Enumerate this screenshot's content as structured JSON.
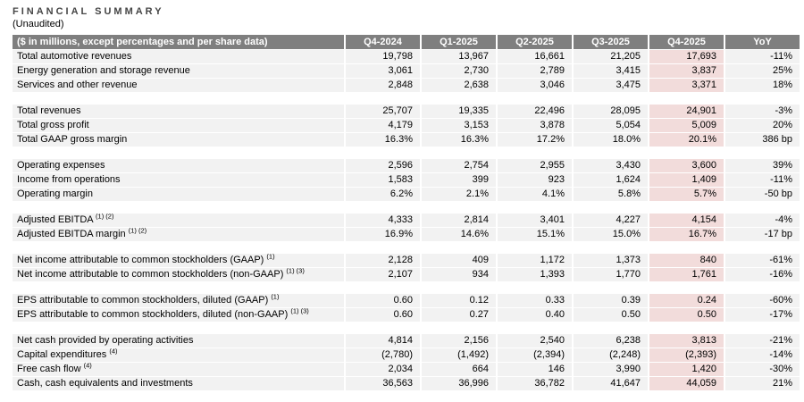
{
  "title": "FINANCIAL SUMMARY",
  "subtitle": "(Unaudited)",
  "colors": {
    "header_bg": "#7f7f7f",
    "header_text": "#ffffff",
    "row_bg": "#f2f2f2",
    "highlight_bg": "#f2dcdb",
    "title_color": "#454545",
    "text_color": "#000000"
  },
  "table": {
    "header_label": "($ in millions, except percentages and per share data)",
    "columns": [
      "Q4-2024",
      "Q1-2025",
      "Q2-2025",
      "Q3-2025",
      "Q4-2025",
      "YoY"
    ],
    "highlight_column_index": 4,
    "sections": [
      {
        "rows": [
          {
            "label": "Total automotive revenues",
            "sup": "",
            "values": [
              "19,798",
              "13,967",
              "16,661",
              "21,205",
              "17,693",
              "-11%"
            ]
          },
          {
            "label": "Energy generation and storage revenue",
            "sup": "",
            "values": [
              "3,061",
              "2,730",
              "2,789",
              "3,415",
              "3,837",
              "25%"
            ]
          },
          {
            "label": "Services and other revenue",
            "sup": "",
            "values": [
              "2,848",
              "2,638",
              "3,046",
              "3,475",
              "3,371",
              "18%"
            ]
          }
        ]
      },
      {
        "rows": [
          {
            "label": "Total revenues",
            "sup": "",
            "values": [
              "25,707",
              "19,335",
              "22,496",
              "28,095",
              "24,901",
              "-3%"
            ]
          },
          {
            "label": "Total gross profit",
            "sup": "",
            "values": [
              "4,179",
              "3,153",
              "3,878",
              "5,054",
              "5,009",
              "20%"
            ]
          },
          {
            "label": "Total GAAP gross margin",
            "sup": "",
            "values": [
              "16.3%",
              "16.3%",
              "17.2%",
              "18.0%",
              "20.1%",
              "386 bp"
            ]
          }
        ]
      },
      {
        "rows": [
          {
            "label": "Operating expenses",
            "sup": "",
            "values": [
              "2,596",
              "2,754",
              "2,955",
              "3,430",
              "3,600",
              "39%"
            ]
          },
          {
            "label": "Income from operations",
            "sup": "",
            "values": [
              "1,583",
              "399",
              "923",
              "1,624",
              "1,409",
              "-11%"
            ]
          },
          {
            "label": "Operating margin",
            "sup": "",
            "values": [
              "6.2%",
              "2.1%",
              "4.1%",
              "5.8%",
              "5.7%",
              "-50 bp"
            ]
          }
        ]
      },
      {
        "rows": [
          {
            "label": "Adjusted EBITDA",
            "sup": "(1) (2)",
            "values": [
              "4,333",
              "2,814",
              "3,401",
              "4,227",
              "4,154",
              "-4%"
            ]
          },
          {
            "label": "Adjusted EBITDA margin",
            "sup": "(1) (2)",
            "values": [
              "16.9%",
              "14.6%",
              "15.1%",
              "15.0%",
              "16.7%",
              "-17 bp"
            ]
          }
        ]
      },
      {
        "rows": [
          {
            "label": "Net income attributable to common stockholders (GAAP)",
            "sup": "(1)",
            "values": [
              "2,128",
              "409",
              "1,172",
              "1,373",
              "840",
              "-61%"
            ]
          },
          {
            "label": "Net income attributable to common stockholders (non-GAAP)",
            "sup": "(1) (3)",
            "values": [
              "2,107",
              "934",
              "1,393",
              "1,770",
              "1,761",
              "-16%"
            ]
          }
        ]
      },
      {
        "rows": [
          {
            "label": "EPS attributable to common stockholders, diluted (GAAP)",
            "sup": "(1)",
            "values": [
              "0.60",
              "0.12",
              "0.33",
              "0.39",
              "0.24",
              "-60%"
            ]
          },
          {
            "label": "EPS attributable to common stockholders, diluted (non-GAAP)",
            "sup": "(1) (3)",
            "values": [
              "0.60",
              "0.27",
              "0.40",
              "0.50",
              "0.50",
              "-17%"
            ]
          }
        ]
      },
      {
        "rows": [
          {
            "label": "Net cash provided by operating activities",
            "sup": "",
            "values": [
              "4,814",
              "2,156",
              "2,540",
              "6,238",
              "3,813",
              "-21%"
            ]
          },
          {
            "label": "Capital expenditures",
            "sup": "(4)",
            "values": [
              "(2,780)",
              "(1,492)",
              "(2,394)",
              "(2,248)",
              "(2,393)",
              "-14%"
            ]
          },
          {
            "label": "Free cash flow",
            "sup": "(4)",
            "values": [
              "2,034",
              "664",
              "146",
              "3,990",
              "1,420",
              "-30%"
            ]
          },
          {
            "label": "Cash, cash equivalents and investments",
            "sup": "",
            "values": [
              "36,563",
              "36,996",
              "36,782",
              "41,647",
              "44,059",
              "21%"
            ]
          }
        ]
      }
    ]
  }
}
